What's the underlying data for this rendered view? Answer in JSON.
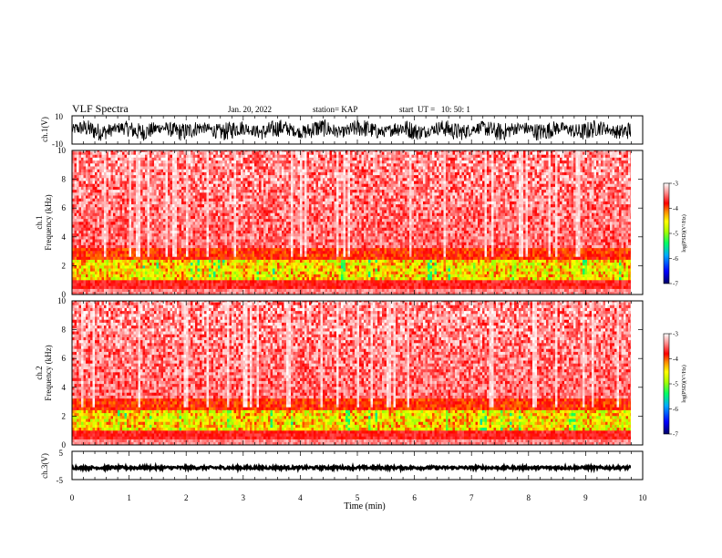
{
  "header": {
    "title": "VLF Spectra",
    "date": "Jan. 20, 2022",
    "station": "station= KAP",
    "start": "start  UT =   10: 50: 1"
  },
  "chart_data": [
    {
      "type": "line",
      "panel": "ch1-waveform",
      "ylabel": "ch.1(V)",
      "ylim": [
        -10,
        10
      ],
      "yticks": [
        "10",
        "-10"
      ],
      "xlim": [
        0,
        10
      ],
      "description_values": "dense noisy waveform, roughly between -7 and 7 V"
    },
    {
      "type": "heatmap",
      "panel": "ch1-spectrogram",
      "ylabel": "ch.1\nFrequency (kHz)",
      "ylim": [
        0,
        10
      ],
      "yticks": [
        "0",
        "2",
        "4",
        "6",
        "8",
        "10"
      ],
      "xlim": [
        0,
        10
      ],
      "colorbar": {
        "label": "log(PSD)(V²/Hz)",
        "range": [
          -7,
          -3
        ],
        "ticks": [
          "-3",
          "-4",
          "-5",
          "-6",
          "-7"
        ]
      }
    },
    {
      "type": "heatmap",
      "panel": "ch2-spectrogram",
      "ylabel": "ch.2\nFrequency (kHz)",
      "ylim": [
        0,
        10
      ],
      "yticks": [
        "0",
        "2",
        "4",
        "6",
        "8",
        "10"
      ],
      "xlim": [
        0,
        10
      ],
      "colorbar": {
        "label": "log(PSD)(V²/Hz)",
        "range": [
          -7,
          -3
        ],
        "ticks": [
          "-3",
          "-4",
          "-5",
          "-6",
          "-7"
        ]
      }
    },
    {
      "type": "line",
      "panel": "ch3-waveform",
      "ylabel": "ch.3(V)",
      "ylim": [
        -5,
        5
      ],
      "yticks": [
        "5",
        "0",
        "-5"
      ],
      "xlim": [
        0,
        10
      ],
      "description_values": "thick flat trace near -1 V"
    }
  ],
  "xaxis": {
    "label": "Time (min)",
    "ticks": [
      "0",
      "1",
      "2",
      "3",
      "4",
      "5",
      "6",
      "7",
      "8",
      "9",
      "10"
    ],
    "data_end": 9.83
  },
  "colors": {
    "colormap": [
      "#000066",
      "#0000ff",
      "#00aaff",
      "#00ff66",
      "#aaff00",
      "#ffff00",
      "#ff8800",
      "#ff0000",
      "#ff8888",
      "#ffffff"
    ]
  }
}
